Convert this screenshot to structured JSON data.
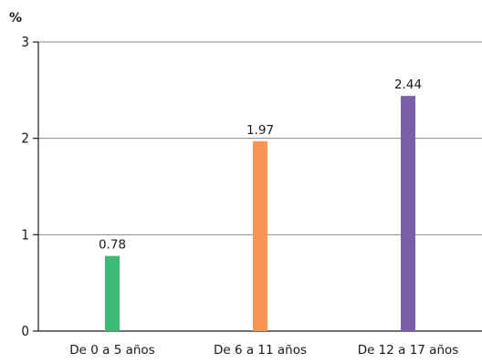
{
  "chart_data": {
    "type": "bar",
    "title": "",
    "ylabel": "%",
    "xlabel": "",
    "categories": [
      "De 0 a 5 años",
      "De 6 a 11 años",
      "De 12 a 17 años"
    ],
    "values": [
      0.78,
      1.97,
      2.44
    ],
    "value_labels": [
      "0.78",
      "1.97",
      "2.44"
    ],
    "colors": [
      "#3dba78",
      "#f89553",
      "#7b5ea8"
    ],
    "ylim": [
      0,
      3
    ],
    "yticks": [
      0,
      1,
      2,
      3
    ],
    "grid": true,
    "legend": "none"
  }
}
